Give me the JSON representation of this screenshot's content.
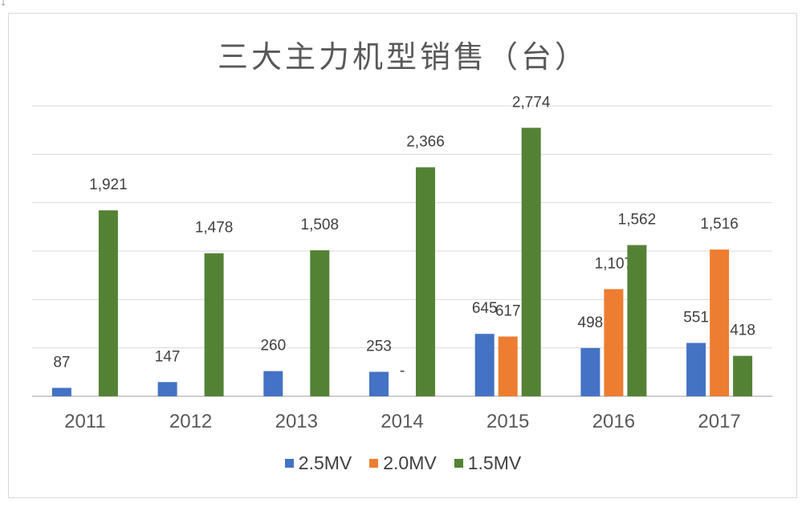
{
  "chart_data": {
    "type": "bar",
    "title": "三大主力机型销售（台）",
    "xlabel": "",
    "ylabel": "",
    "categories": [
      "2011",
      "2012",
      "2013",
      "2014",
      "2015",
      "2016",
      "2017"
    ],
    "series": [
      {
        "name": "2.5MV",
        "color": "#4472c4",
        "values": [
          87,
          147,
          260,
          253,
          645,
          498,
          551
        ],
        "labels": [
          "87",
          "147",
          "260",
          "253",
          "645",
          "498",
          "551"
        ]
      },
      {
        "name": "2.0MV",
        "color": "#ed7d31",
        "values": [
          0,
          0,
          0,
          0,
          617,
          1107,
          1516
        ],
        "labels": [
          "",
          "",
          "",
          "-",
          "617",
          "1,107",
          "1,516"
        ]
      },
      {
        "name": "1.5MV",
        "color": "#548235",
        "values": [
          1921,
          1478,
          1508,
          2366,
          2774,
          1562,
          418
        ],
        "labels": [
          "1,921",
          "1,478",
          "1,508",
          "2,366",
          "2,774",
          "1,562",
          "418"
        ]
      }
    ],
    "ylim": [
      0,
      3000
    ],
    "grid": true,
    "legend": "bottom",
    "corner_mark": "↓"
  }
}
